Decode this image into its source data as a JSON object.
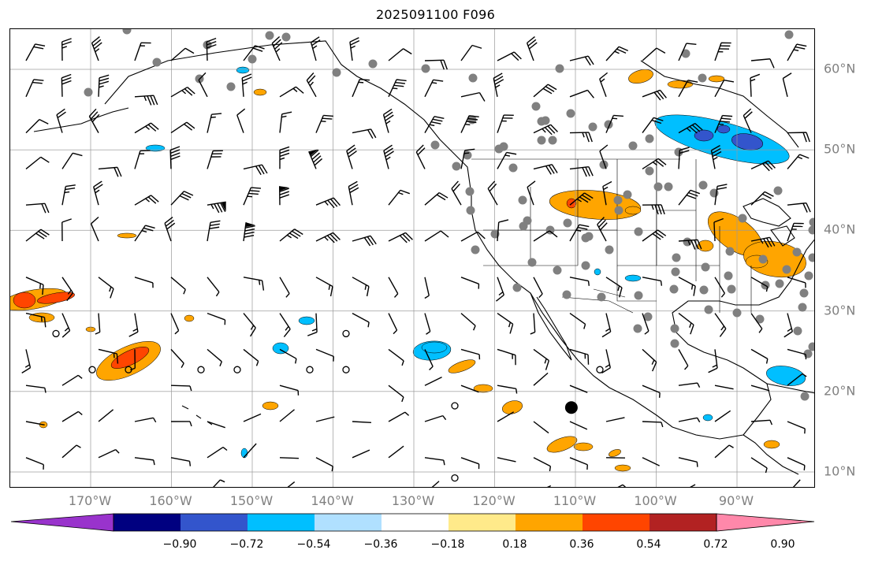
{
  "title": "2025091100 F096",
  "map": {
    "lon_labels": [
      {
        "text": "170°W",
        "lon": -170
      },
      {
        "text": "160°W",
        "lon": -160
      },
      {
        "text": "150°W",
        "lon": -150
      },
      {
        "text": "140°W",
        "lon": -140
      },
      {
        "text": "130°W",
        "lon": -130
      },
      {
        "text": "120°W",
        "lon": -120
      },
      {
        "text": "110°W",
        "lon": -110
      },
      {
        "text": "100°W",
        "lon": -100
      },
      {
        "text": "90°W",
        "lon": -90
      }
    ],
    "lat_labels": [
      {
        "text": "60°N",
        "lat": 60
      },
      {
        "text": "50°N",
        "lat": 50
      },
      {
        "text": "40°N",
        "lat": 40
      },
      {
        "text": "30°N",
        "lat": 30
      },
      {
        "text": "20°N",
        "lat": 20
      },
      {
        "text": "10°N",
        "lat": 10
      }
    ],
    "extent": {
      "lon_min": -180,
      "lon_max": -80,
      "lat_min": 8,
      "lat_max": 65
    },
    "gridlines": true,
    "marker_center": {
      "lon": -110.5,
      "lat": 18
    }
  },
  "colorbar": {
    "labels": [
      "−0.90",
      "−0.72",
      "−0.54",
      "−0.36",
      "−0.18",
      "0.18",
      "0.36",
      "0.54",
      "0.72",
      "0.90"
    ],
    "colors": [
      "#9933cc",
      "#000080",
      "#3355cc",
      "#00bfff",
      "#b0e0ff",
      "#ffffff",
      "#ffea8a",
      "#ffa500",
      "#ff4500",
      "#b22222",
      "#ff88aa"
    ],
    "extend": "both"
  }
}
